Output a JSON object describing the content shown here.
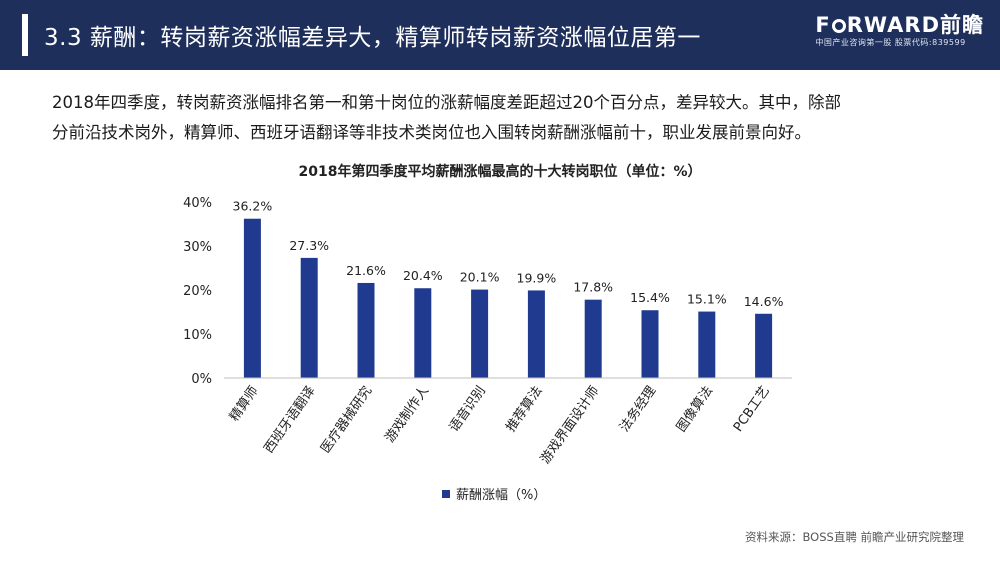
{
  "header": {
    "title": "3.3 薪酬：转岗薪资涨幅差异大，精算师转岗薪资涨幅位居第一",
    "logo_brand_pre": "F",
    "logo_brand_post": "RWARD前瞻",
    "logo_sub": "中国产业咨询第一股  股票代码:839599"
  },
  "intro": {
    "line1": "2018年四季度，转岗薪资涨幅排名第一和第十岗位的涨薪幅度差距超过20个百分点，差异较大。其中，除部",
    "line2": "分前沿技术岗外，精算师、西班牙语翻译等非技术类岗位也入围转岗薪酬涨幅前十，职业发展前景向好。"
  },
  "chart_title": "2018年第四季度平均薪酬涨幅最高的十大转岗职位（单位：%）",
  "legend_label": "薪酬涨幅（%）",
  "source": "资料来源：BOSS直聘 前瞻产业研究院整理",
  "colors": {
    "header_bg": "#1f2f5c",
    "bar": "#1f3a8f"
  },
  "chart_data": {
    "type": "bar",
    "title": "2018年第四季度平均薪酬涨幅最高的十大转岗职位（单位：%）",
    "categories": [
      "精算师",
      "西班牙语翻译",
      "医疗器械研究",
      "游戏制作人",
      "语音识别",
      "推荐算法",
      "游戏界面设计师",
      "法务经理",
      "图像算法",
      "PCB工艺"
    ],
    "values": [
      36.2,
      27.3,
      21.6,
      20.4,
      20.1,
      19.9,
      17.8,
      15.4,
      15.1,
      14.6
    ],
    "value_labels": [
      "36.2%",
      "27.3%",
      "21.6%",
      "20.4%",
      "20.1%",
      "19.9%",
      "17.8%",
      "15.4%",
      "15.1%",
      "14.6%"
    ],
    "series": [
      {
        "name": "薪酬涨幅（%）",
        "values": [
          36.2,
          27.3,
          21.6,
          20.4,
          20.1,
          19.9,
          17.8,
          15.4,
          15.1,
          14.6
        ]
      }
    ],
    "y_ticks": [
      0,
      10,
      20,
      30,
      40
    ],
    "y_tick_labels": [
      "0%",
      "10%",
      "20%",
      "30%",
      "40%"
    ],
    "ylim": [
      0,
      40
    ],
    "grid": false,
    "legend_position": "bottom"
  }
}
